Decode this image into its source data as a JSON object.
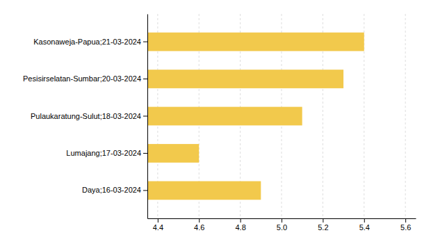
{
  "chart_data": {
    "type": "bar",
    "orientation": "horizontal",
    "categories": [
      "Daya;16-03-2024",
      "Lumajang;17-03-2024",
      "Pulaukaratung-Sulut;18-03-2024",
      "Pesisirselatan-Sumbar;20-03-2024",
      "Kasonaweja-Papua;21-03-2024"
    ],
    "values": [
      4.9,
      4.6,
      5.1,
      5.3,
      5.4
    ],
    "color": "#F2C94C",
    "xlim": [
      4.35,
      5.65
    ],
    "xticks": [
      4.4,
      4.6,
      4.8,
      {
        "value": 5.0,
        "label": "5.0"
      },
      5.2,
      5.4,
      5.6
    ],
    "grid": true
  }
}
